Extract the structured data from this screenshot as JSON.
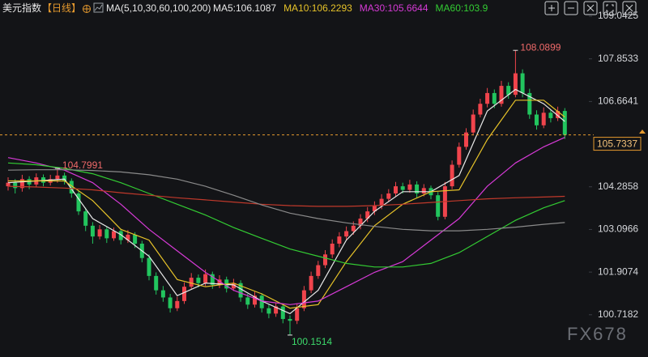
{
  "chart_data": {
    "type": "candlestick",
    "title": "美元指数",
    "period": "【日线】",
    "ma_legend": "MA(5,10,30,60,100,200)",
    "watermark": "FX678",
    "up_color": "#f0444c",
    "down_color": "#22c55e",
    "ylim": [
      99.54,
      109.494
    ],
    "yticks": [
      109.0425,
      107.8533,
      106.6641,
      104.2858,
      103.0966,
      101.9074,
      100.7182
    ],
    "grid": false,
    "ohlc": [
      [
        104.3,
        104.55,
        104.18,
        104.4
      ],
      [
        104.4,
        104.5,
        104.1,
        104.25
      ],
      [
        104.25,
        104.62,
        104.15,
        104.5
      ],
      [
        104.5,
        104.58,
        104.22,
        104.35
      ],
      [
        104.35,
        104.66,
        104.28,
        104.55
      ],
      [
        104.55,
        104.63,
        104.3,
        104.4
      ],
      [
        104.4,
        104.62,
        104.32,
        104.5
      ],
      [
        104.5,
        104.7991,
        104.4,
        104.6
      ],
      [
        104.6,
        104.68,
        104.35,
        104.45
      ],
      [
        104.45,
        104.52,
        103.98,
        104.1
      ],
      [
        104.1,
        104.18,
        103.5,
        103.6
      ],
      [
        103.6,
        103.7,
        103.05,
        103.2
      ],
      [
        103.2,
        103.3,
        102.7,
        102.9
      ],
      [
        102.9,
        103.22,
        102.82,
        103.1
      ],
      [
        103.1,
        103.18,
        102.72,
        102.85
      ],
      [
        102.85,
        103.15,
        102.78,
        103.05
      ],
      [
        103.05,
        103.12,
        102.68,
        102.8
      ],
      [
        102.8,
        103.08,
        102.72,
        102.95
      ],
      [
        102.95,
        103.02,
        102.58,
        102.7
      ],
      [
        102.7,
        102.78,
        102.18,
        102.3
      ],
      [
        102.3,
        102.4,
        101.68,
        101.8
      ],
      [
        101.8,
        101.9,
        101.28,
        101.4
      ],
      [
        101.4,
        101.52,
        101.08,
        101.2
      ],
      [
        101.2,
        101.3,
        100.78,
        100.9
      ],
      [
        100.9,
        101.22,
        100.82,
        101.1
      ],
      [
        101.1,
        101.62,
        101.02,
        101.5
      ],
      [
        101.5,
        101.88,
        101.42,
        101.75
      ],
      [
        101.75,
        101.84,
        101.48,
        101.6
      ],
      [
        101.6,
        101.98,
        101.52,
        101.85
      ],
      [
        101.85,
        101.92,
        101.44,
        101.55
      ],
      [
        101.55,
        101.82,
        101.46,
        101.7
      ],
      [
        101.7,
        101.78,
        101.34,
        101.45
      ],
      [
        101.45,
        101.72,
        101.38,
        101.6
      ],
      [
        101.6,
        101.68,
        101.08,
        101.2
      ],
      [
        101.2,
        101.3,
        100.88,
        101.0
      ],
      [
        101.0,
        101.36,
        100.92,
        101.25
      ],
      [
        101.25,
        101.32,
        100.78,
        100.9
      ],
      [
        100.9,
        101.0,
        100.62,
        100.75
      ],
      [
        100.75,
        101.06,
        100.66,
        100.95
      ],
      [
        100.95,
        101.02,
        100.48,
        100.6
      ],
      [
        100.6,
        100.7,
        100.1514,
        100.55
      ],
      [
        100.55,
        101.02,
        100.46,
        100.9
      ],
      [
        100.9,
        101.52,
        100.82,
        101.4
      ],
      [
        101.4,
        101.92,
        101.32,
        101.8
      ],
      [
        101.8,
        102.22,
        101.72,
        102.1
      ],
      [
        102.1,
        102.52,
        102.02,
        102.4
      ],
      [
        102.4,
        102.82,
        102.3,
        102.7
      ],
      [
        102.7,
        103.02,
        102.6,
        102.9
      ],
      [
        102.9,
        103.18,
        102.8,
        103.05
      ],
      [
        103.05,
        103.32,
        102.95,
        103.2
      ],
      [
        103.2,
        103.52,
        103.1,
        103.4
      ],
      [
        103.4,
        103.72,
        103.3,
        103.6
      ],
      [
        103.6,
        103.88,
        103.5,
        103.75
      ],
      [
        103.75,
        104.08,
        103.66,
        103.95
      ],
      [
        103.95,
        104.22,
        103.86,
        104.1
      ],
      [
        104.1,
        104.42,
        104.0,
        104.3
      ],
      [
        104.3,
        104.4,
        104.1,
        104.2
      ],
      [
        104.2,
        104.48,
        104.12,
        104.35
      ],
      [
        104.35,
        104.44,
        103.98,
        104.1
      ],
      [
        104.1,
        104.36,
        104.02,
        104.25
      ],
      [
        104.25,
        104.32,
        103.94,
        104.05
      ],
      [
        104.05,
        104.14,
        103.35,
        103.45
      ],
      [
        103.45,
        104.42,
        103.38,
        104.3
      ],
      [
        104.3,
        105.02,
        104.22,
        104.9
      ],
      [
        104.9,
        105.52,
        104.82,
        105.4
      ],
      [
        105.4,
        105.92,
        105.32,
        105.8
      ],
      [
        105.8,
        106.44,
        105.72,
        106.3
      ],
      [
        106.3,
        106.74,
        106.22,
        106.6
      ],
      [
        106.6,
        107.04,
        106.5,
        106.9
      ],
      [
        106.9,
        107.0,
        106.48,
        106.6
      ],
      [
        106.6,
        107.24,
        106.52,
        107.1
      ],
      [
        107.1,
        107.2,
        106.74,
        106.85
      ],
      [
        106.85,
        108.0899,
        106.78,
        107.45
      ],
      [
        107.45,
        107.56,
        106.78,
        106.9
      ],
      [
        106.9,
        107.02,
        106.18,
        106.3
      ],
      [
        106.3,
        106.42,
        105.88,
        106.0
      ],
      [
        106.0,
        106.5,
        105.92,
        106.35
      ],
      [
        106.35,
        106.44,
        106.08,
        106.2
      ],
      [
        106.2,
        106.52,
        106.12,
        106.4
      ],
      [
        106.4,
        106.48,
        105.62,
        105.7337
      ]
    ],
    "high_marks": [
      7,
      72
    ],
    "low_marks": [
      40
    ],
    "ma_x": [
      0,
      4,
      8,
      12,
      16,
      20,
      24,
      28,
      32,
      36,
      40,
      44,
      48,
      52,
      56,
      60,
      64,
      68,
      72,
      76,
      79
    ],
    "series": [
      {
        "label": "MA5:106.1087",
        "color": "#e8e8e8",
        "values": [
          104.4,
          104.45,
          104.5,
          103.4,
          102.95,
          102.35,
          101.25,
          101.6,
          101.55,
          101.1,
          100.75,
          101.4,
          102.8,
          103.6,
          104.15,
          104.15,
          104.6,
          106.4,
          107.0,
          106.6,
          106.1087
        ]
      },
      {
        "label": "MA10:106.2293",
        "color": "#e6c229",
        "values": [
          104.45,
          104.45,
          104.45,
          103.9,
          103.1,
          102.8,
          101.7,
          101.5,
          101.6,
          101.3,
          100.9,
          101.0,
          102.2,
          103.2,
          103.8,
          104.15,
          104.2,
          105.6,
          106.7,
          106.7,
          106.2293
        ]
      },
      {
        "label": "MA30:105.6644",
        "color": "#d63ad6",
        "values": [
          105.1,
          104.95,
          104.75,
          104.4,
          103.8,
          103.1,
          102.5,
          101.9,
          101.4,
          101.1,
          101.0,
          101.1,
          101.5,
          101.9,
          102.2,
          102.8,
          103.4,
          104.3,
          104.95,
          105.4,
          105.6644
        ]
      },
      {
        "label": "MA60:103.9",
        "color": "#33cc33",
        "values": [
          104.95,
          104.9,
          104.8,
          104.65,
          104.4,
          104.1,
          103.8,
          103.5,
          103.15,
          102.85,
          102.55,
          102.35,
          102.15,
          102.05,
          102.05,
          102.15,
          102.45,
          102.9,
          103.35,
          103.7,
          103.9
        ]
      },
      {
        "color": "#c0392b",
        "values": [
          104.3,
          104.28,
          104.25,
          104.2,
          104.12,
          104.05,
          103.98,
          103.92,
          103.86,
          103.8,
          103.76,
          103.74,
          103.74,
          103.76,
          103.8,
          103.85,
          103.9,
          103.95,
          103.98,
          104.0,
          104.02
        ]
      },
      {
        "color": "#8a8a8a",
        "values": [
          104.75,
          104.76,
          104.76,
          104.74,
          104.7,
          104.62,
          104.5,
          104.3,
          104.05,
          103.78,
          103.55,
          103.4,
          103.28,
          103.18,
          103.1,
          103.06,
          103.06,
          103.1,
          103.16,
          103.24,
          103.29
        ]
      }
    ]
  }
}
